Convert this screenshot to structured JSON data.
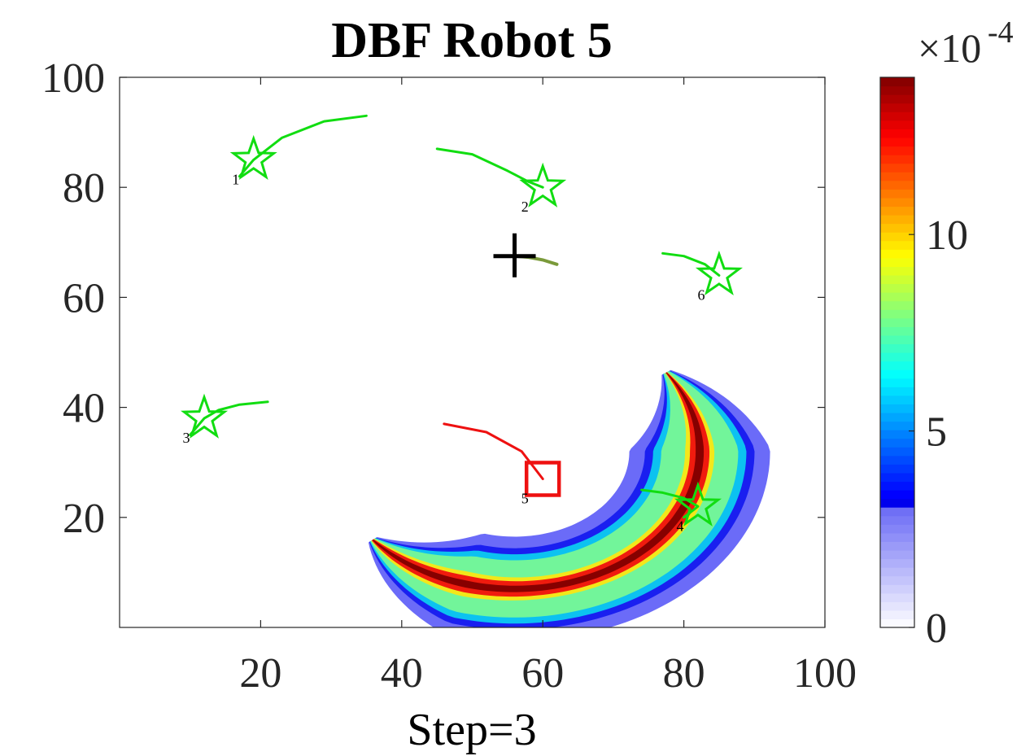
{
  "chart_data": {
    "type": "contour",
    "title": "DBF Robot 5",
    "xlabel": "Step=3",
    "ylabel": "",
    "xlim": [
      0,
      100
    ],
    "ylim": [
      0,
      100
    ],
    "x_ticks": [
      "20",
      "40",
      "60",
      "80",
      "100"
    ],
    "y_ticks": [
      "20",
      "40",
      "60",
      "80",
      "100"
    ],
    "grid": false,
    "colorbar": {
      "colormap": "jet",
      "range": [
        0,
        0.0014
      ],
      "ticks": [
        "0",
        "5",
        "10"
      ],
      "tick_values": [
        0,
        5,
        10
      ],
      "multiplier_base": "×10",
      "multiplier_exponent": "-4"
    },
    "belief_band": {
      "center": [
        56,
        32
      ],
      "radius": 25,
      "levels": [
        {
          "value": 2.2,
          "half_width": 9.5,
          "color": "#6b6bf8"
        },
        {
          "value": 3.8,
          "half_width": 7.4,
          "color": "#1a1ff0"
        },
        {
          "value": 5.6,
          "half_width": 6.3,
          "color": "#0cc2f0"
        },
        {
          "value": 7.5,
          "half_width": 5.2,
          "color": "#72f59a"
        },
        {
          "value": 9.5,
          "half_width": 3.6,
          "color": "#f3e71a"
        },
        {
          "value": 12.0,
          "half_width": 2.4,
          "color": "#f01b0e"
        },
        {
          "value": 13.6,
          "half_width": 1.0,
          "color": "#870000"
        }
      ]
    },
    "robots": [
      {
        "id": "1",
        "pos": [
          19,
          85
        ],
        "trail": [
          [
            35,
            93
          ],
          [
            29,
            92
          ],
          [
            23,
            89
          ],
          [
            19,
            85
          ],
          [
            17,
            82
          ]
        ],
        "color": "#11dd11",
        "marker": "star"
      },
      {
        "id": "2",
        "pos": [
          60,
          80
        ],
        "trail": [
          [
            45,
            87
          ],
          [
            50,
            86
          ],
          [
            55,
            83
          ],
          [
            58,
            81
          ],
          [
            60,
            80
          ]
        ],
        "color": "#11dd11",
        "marker": "star"
      },
      {
        "id": "3",
        "pos": [
          12,
          38
        ],
        "trail": [
          [
            21,
            41
          ],
          [
            17,
            40.5
          ],
          [
            14,
            39.5
          ],
          [
            12,
            38
          ],
          [
            10,
            35
          ]
        ],
        "color": "#11dd11",
        "marker": "star"
      },
      {
        "id": "4",
        "pos": [
          82,
          22
        ],
        "trail": [
          [
            74,
            25
          ],
          [
            77,
            24.5
          ],
          [
            80,
            23.5
          ],
          [
            82,
            22
          ],
          [
            80,
            20
          ]
        ],
        "color": "#11dd11",
        "marker": "star"
      },
      {
        "id": "5",
        "pos": [
          60,
          27
        ],
        "trail": [
          [
            46,
            37
          ],
          [
            52,
            35.5
          ],
          [
            57,
            32
          ],
          [
            60,
            27
          ]
        ],
        "color": "#ee1111",
        "marker": "square"
      },
      {
        "id": "6",
        "pos": [
          85,
          64
        ],
        "trail": [
          [
            77,
            68
          ],
          [
            80,
            67.5
          ],
          [
            83,
            66
          ],
          [
            85,
            64
          ]
        ],
        "color": "#11dd11",
        "marker": "star"
      }
    ],
    "target": {
      "pos": [
        56,
        67.5
      ],
      "trail": [
        [
          56,
          67.5
        ],
        [
          58,
          67.3
        ],
        [
          60,
          66.8
        ],
        [
          62,
          66
        ]
      ],
      "marker": "plus",
      "color": "#000000",
      "trail_color": "#7a9a3a"
    }
  }
}
